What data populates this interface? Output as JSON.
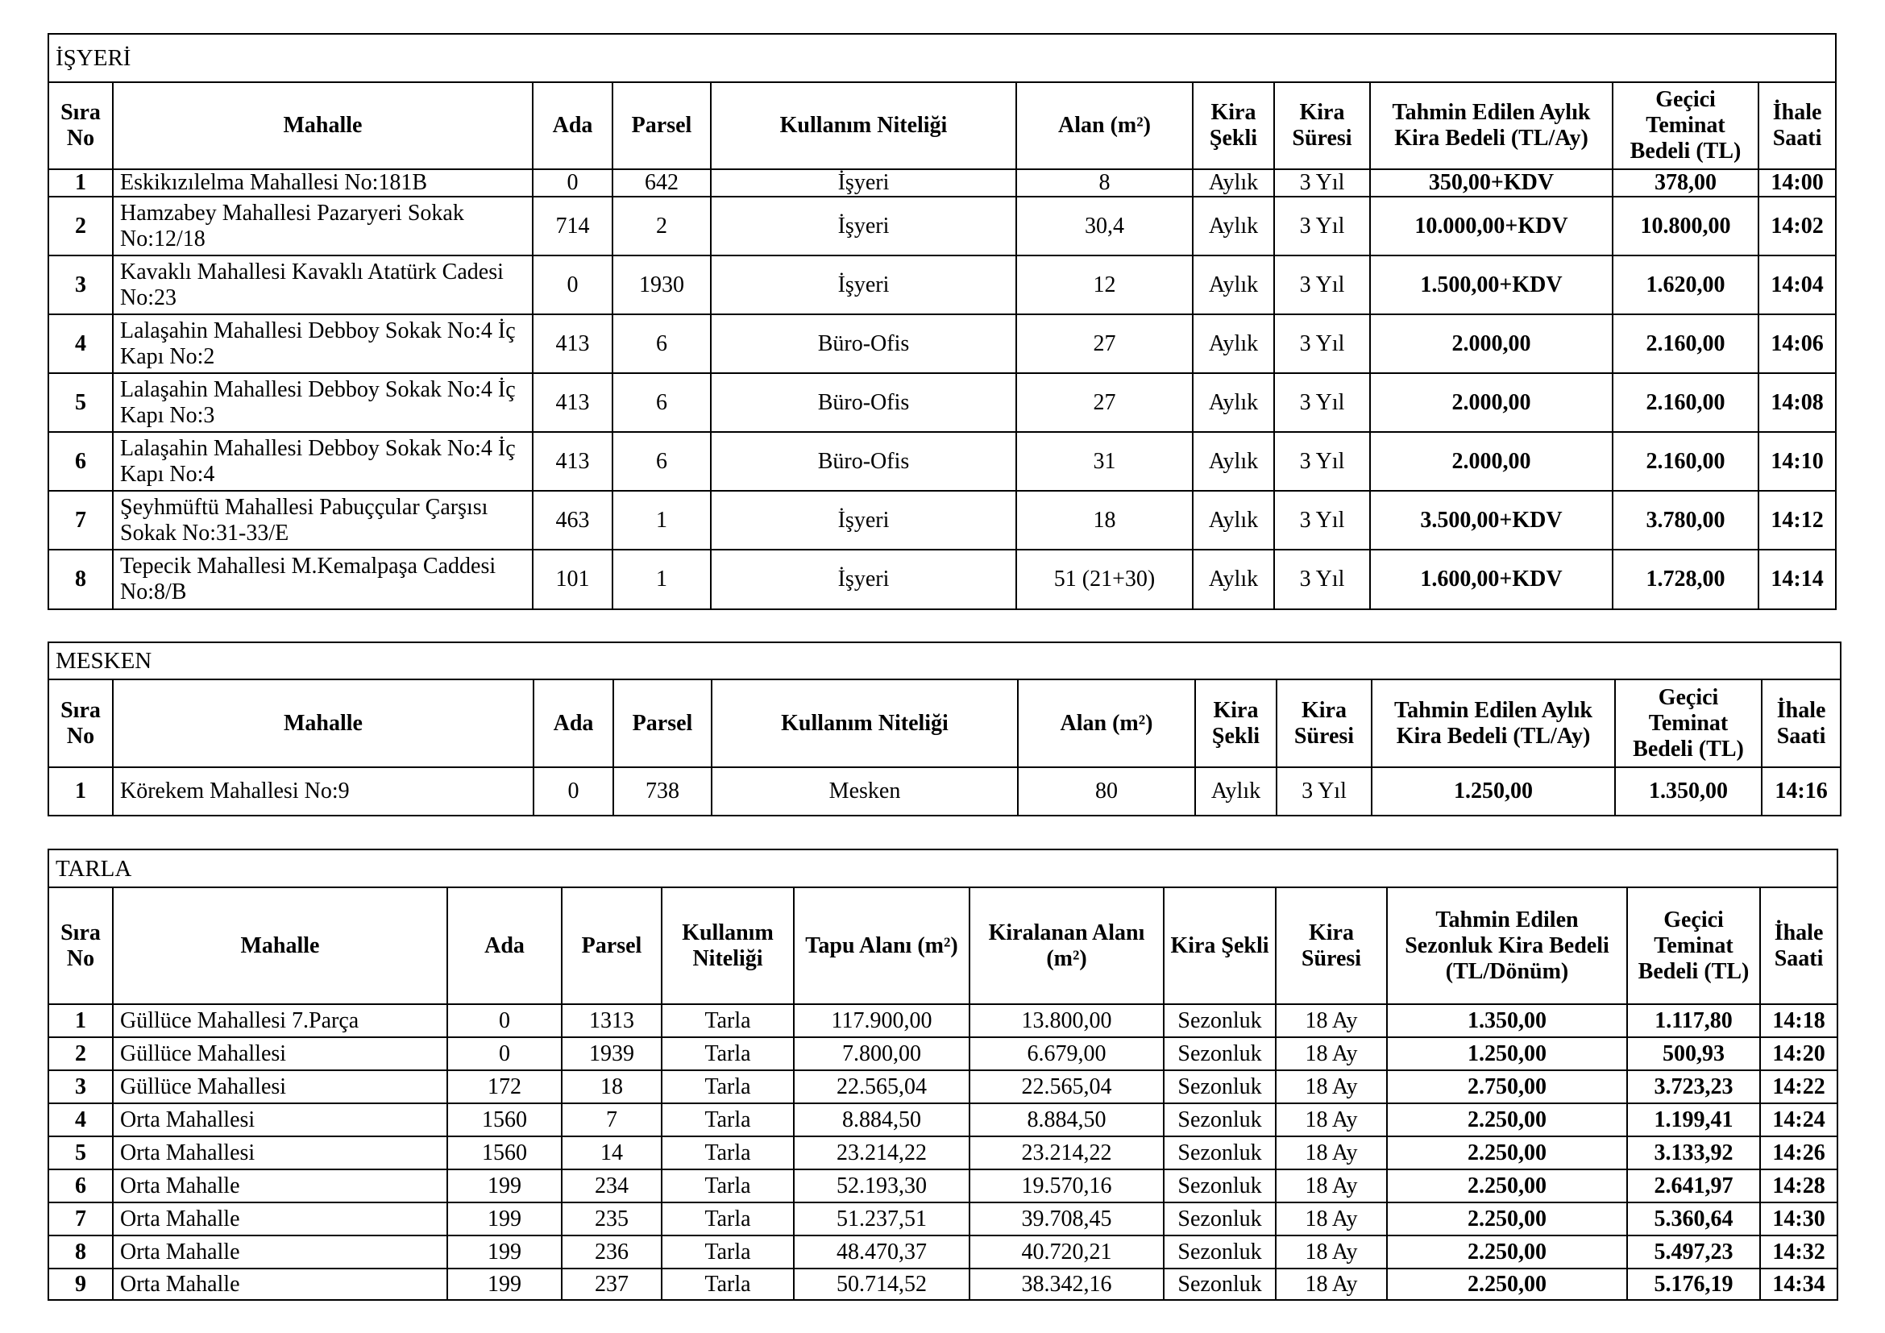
{
  "sections": [
    {
      "title": "İŞYERİ",
      "headers": [
        "Sıra No",
        "Mahalle",
        "Ada",
        "Parsel",
        "Kullanım Niteliği",
        "Alan (m²)",
        "Kira Şekli",
        "Kira Süresi",
        "Tahmin Edilen Aylık Kira Bedeli (TL/Ay)",
        "Geçici Teminat Bedeli (TL)",
        "İhale Saati"
      ],
      "rows": [
        [
          "1",
          "Eskikızılelma Mahallesi No:181B",
          "0",
          "642",
          "İşyeri",
          "8",
          "Aylık",
          "3 Yıl",
          "350,00+KDV",
          "378,00",
          "14:00"
        ],
        [
          "2",
          "Hamzabey Mahallesi Pazaryeri Sokak No:12/18",
          "714",
          "2",
          "İşyeri",
          "30,4",
          "Aylık",
          "3 Yıl",
          "10.000,00+KDV",
          "10.800,00",
          "14:02"
        ],
        [
          "3",
          "Kavaklı Mahallesi Kavaklı Atatürk Cadesi No:23",
          "0",
          "1930",
          "İşyeri",
          "12",
          "Aylık",
          "3 Yıl",
          "1.500,00+KDV",
          "1.620,00",
          "14:04"
        ],
        [
          "4",
          "Lalaşahin Mahallesi Debboy Sokak No:4 İç Kapı No:2",
          "413",
          "6",
          "Büro-Ofis",
          "27",
          "Aylık",
          "3 Yıl",
          "2.000,00",
          "2.160,00",
          "14:06"
        ],
        [
          "5",
          "Lalaşahin Mahallesi Debboy Sokak No:4 İç Kapı No:3",
          "413",
          "6",
          "Büro-Ofis",
          "27",
          "Aylık",
          "3 Yıl",
          "2.000,00",
          "2.160,00",
          "14:08"
        ],
        [
          "6",
          "Lalaşahin Mahallesi Debboy Sokak No:4 İç Kapı No:4",
          "413",
          "6",
          "Büro-Ofis",
          "31",
          "Aylık",
          "3 Yıl",
          "2.000,00",
          "2.160,00",
          "14:10"
        ],
        [
          "7",
          "Şeyhmüftü Mahallesi Pabuççular Çarşısı Sokak No:31-33/E",
          "463",
          "1",
          "İşyeri",
          "18",
          "Aylık",
          "3 Yıl",
          "3.500,00+KDV",
          "3.780,00",
          "14:12"
        ],
        [
          "8",
          "Tepecik Mahallesi M.Kemalpaşa Caddesi No:8/B",
          "101",
          "1",
          "İşyeri",
          "51 (21+30)",
          "Aylık",
          "3 Yıl",
          "1.600,00+KDV",
          "1.728,00",
          "14:14"
        ]
      ]
    },
    {
      "title": "MESKEN",
      "headers": [
        "Sıra No",
        "Mahalle",
        "Ada",
        "Parsel",
        "Kullanım Niteliği",
        "Alan (m²)",
        "Kira Şekli",
        "Kira Süresi",
        "Tahmin Edilen Aylık Kira Bedeli (TL/Ay)",
        "Geçici Teminat Bedeli (TL)",
        "İhale Saati"
      ],
      "rows": [
        [
          "1",
          "Körekem Mahallesi No:9",
          "0",
          "738",
          "Mesken",
          "80",
          "Aylık",
          "3 Yıl",
          "1.250,00",
          "1.350,00",
          "14:16"
        ]
      ]
    },
    {
      "title": "TARLA",
      "headers": [
        "Sıra No",
        "Mahalle",
        "Ada",
        "Parsel",
        "Kullanım Niteliği",
        "Tapu Alanı (m²)",
        "Kiralanan Alanı (m²)",
        "Kira Şekli",
        "Kira Süresi",
        "Tahmin Edilen Sezonluk Kira Bedeli (TL/Dönüm)",
        "Geçici Teminat Bedeli (TL)",
        "İhale Saati"
      ],
      "rows": [
        [
          "1",
          "Güllüce Mahallesi 7.Parça",
          "0",
          "1313",
          "Tarla",
          "117.900,00",
          "13.800,00",
          "Sezonluk",
          "18 Ay",
          "1.350,00",
          "1.117,80",
          "14:18"
        ],
        [
          "2",
          "Güllüce Mahallesi",
          "0",
          "1939",
          "Tarla",
          "7.800,00",
          "6.679,00",
          "Sezonluk",
          "18 Ay",
          "1.250,00",
          "500,93",
          "14:20"
        ],
        [
          "3",
          "Güllüce Mahallesi",
          "172",
          "18",
          "Tarla",
          "22.565,04",
          "22.565,04",
          "Sezonluk",
          "18 Ay",
          "2.750,00",
          "3.723,23",
          "14:22"
        ],
        [
          "4",
          "Orta Mahallesi",
          "1560",
          "7",
          "Tarla",
          "8.884,50",
          "8.884,50",
          "Sezonluk",
          "18 Ay",
          "2.250,00",
          "1.199,41",
          "14:24"
        ],
        [
          "5",
          "Orta Mahallesi",
          "1560",
          "14",
          "Tarla",
          "23.214,22",
          "23.214,22",
          "Sezonluk",
          "18 Ay",
          "2.250,00",
          "3.133,92",
          "14:26"
        ],
        [
          "6",
          "Orta Mahalle",
          "199",
          "234",
          "Tarla",
          "52.193,30",
          "19.570,16",
          "Sezonluk",
          "18 Ay",
          "2.250,00",
          "2.641,97",
          "14:28"
        ],
        [
          "7",
          "Orta Mahalle",
          "199",
          "235",
          "Tarla",
          "51.237,51",
          "39.708,45",
          "Sezonluk",
          "18 Ay",
          "2.250,00",
          "5.360,64",
          "14:30"
        ],
        [
          "8",
          "Orta Mahalle",
          "199",
          "236",
          "Tarla",
          "48.470,37",
          "40.720,21",
          "Sezonluk",
          "18 Ay",
          "2.250,00",
          "5.497,23",
          "14:32"
        ],
        [
          "9",
          "Orta Mahalle",
          "199",
          "237",
          "Tarla",
          "50.714,52",
          "38.342,16",
          "Sezonluk",
          "18 Ay",
          "2.250,00",
          "5.176,19",
          "14:34"
        ]
      ]
    }
  ]
}
